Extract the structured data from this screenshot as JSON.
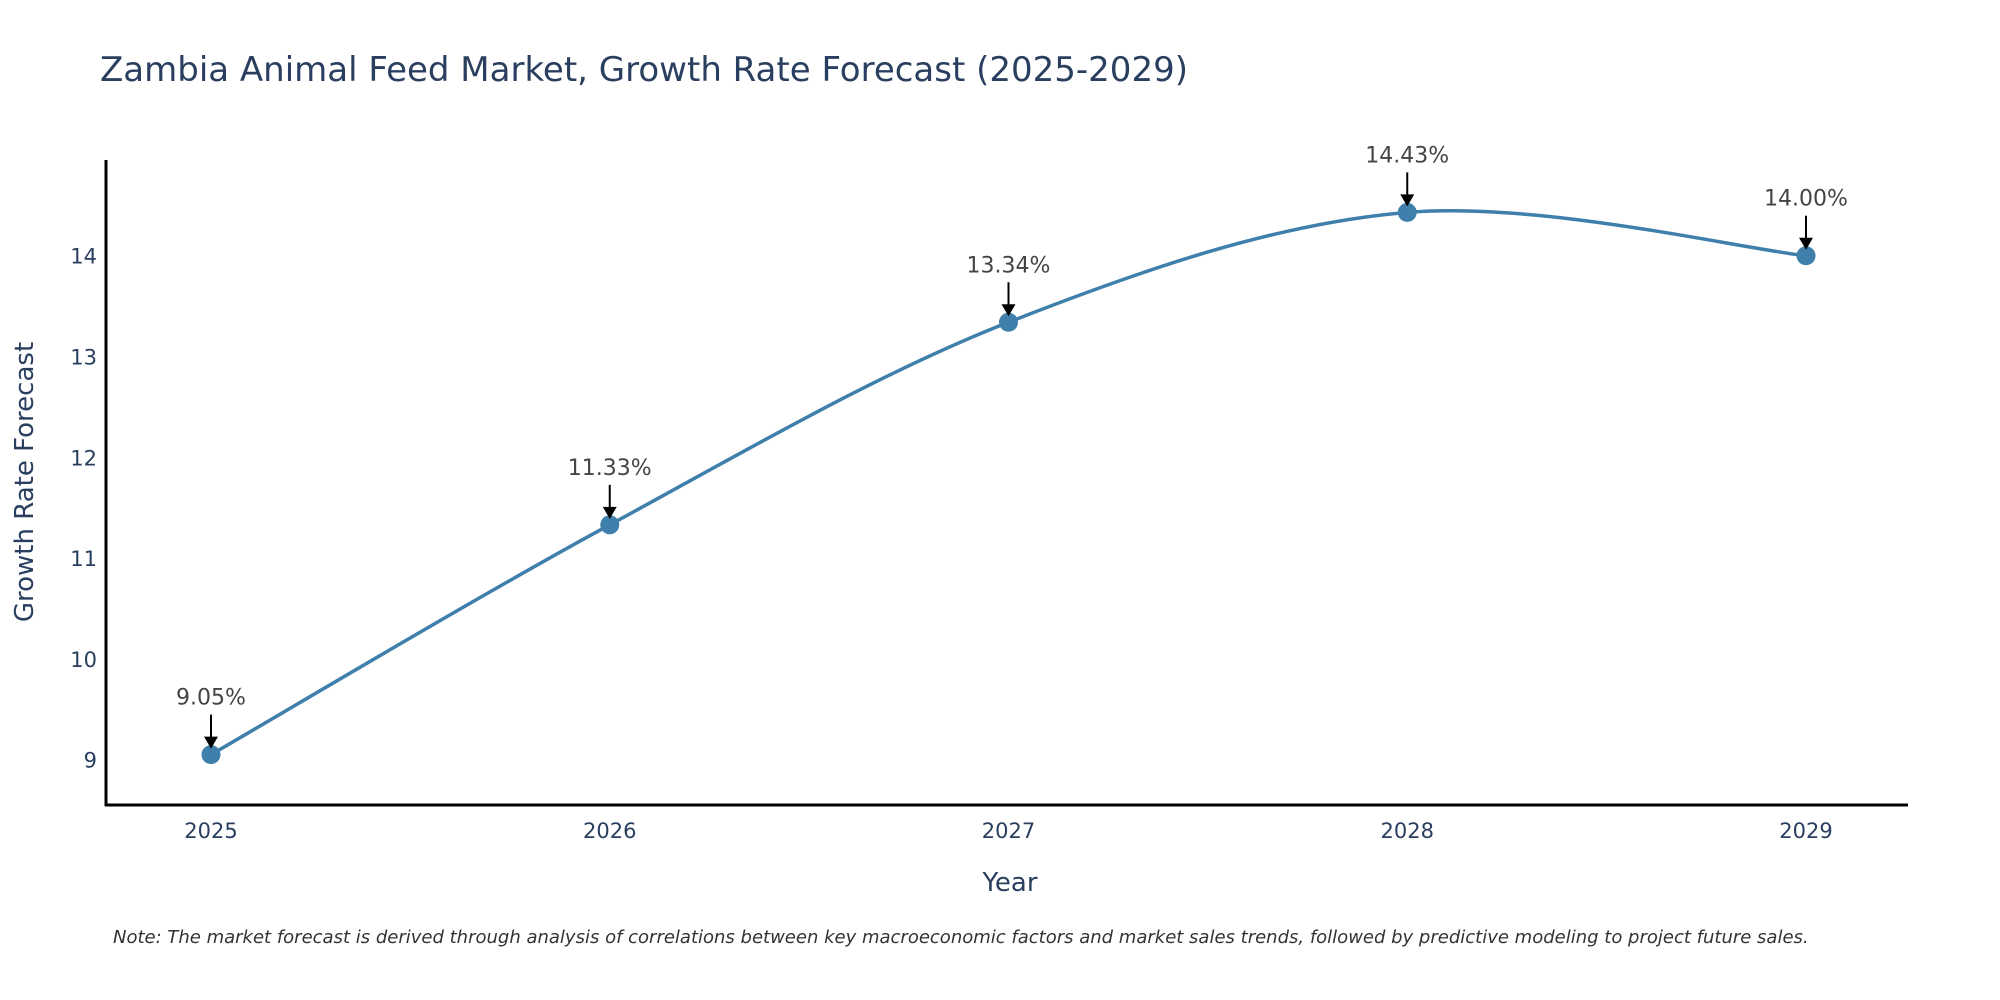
{
  "chart_data": {
    "type": "line",
    "title": "Zambia Animal Feed Market, Growth Rate Forecast (2025-2029)",
    "xlabel": "Year",
    "ylabel": "Growth Rate Forecast",
    "categories": [
      "2025",
      "2026",
      "2027",
      "2028",
      "2029"
    ],
    "values": [
      9.05,
      11.33,
      13.34,
      14.43,
      14.0
    ],
    "data_labels": [
      "9.05%",
      "11.33%",
      "13.34%",
      "14.43%",
      "14.00%"
    ],
    "yticks": [
      9,
      10,
      11,
      12,
      13,
      14
    ],
    "ylim": [
      8.55,
      14.95
    ],
    "grid": false,
    "line_color": "#3f7fab",
    "marker_color": "#3f7fab",
    "annotation_arrow_color": "#000000",
    "note": "Note: The market forecast is derived through analysis of correlations between key macroeconomic factors and market sales trends, followed by predictive modeling to project future sales."
  }
}
